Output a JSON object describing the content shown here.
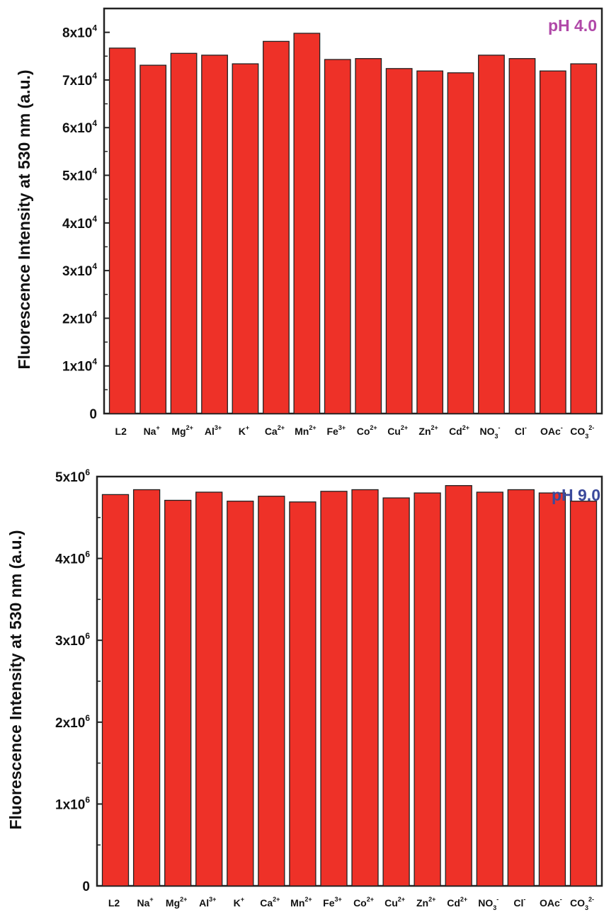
{
  "chart_data": [
    {
      "type": "bar",
      "title": "pH 4.0",
      "title_color": "#b048a8",
      "ylabel": "Fluorescence Intensity at 530 nm (a.u.)",
      "bar_color": "#ee3128",
      "ylim": [
        0,
        85000
      ],
      "yticks": [
        {
          "value": 0,
          "mant": "0",
          "exp": ""
        },
        {
          "value": 10000,
          "mant": "1x10",
          "exp": "4"
        },
        {
          "value": 20000,
          "mant": "2x10",
          "exp": "4"
        },
        {
          "value": 30000,
          "mant": "3x10",
          "exp": "4"
        },
        {
          "value": 40000,
          "mant": "4x10",
          "exp": "4"
        },
        {
          "value": 50000,
          "mant": "5x10",
          "exp": "4"
        },
        {
          "value": 60000,
          "mant": "6x10",
          "exp": "4"
        },
        {
          "value": 70000,
          "mant": "7x10",
          "exp": "4"
        },
        {
          "value": 80000,
          "mant": "8x10",
          "exp": "4"
        }
      ],
      "categories": [
        {
          "base": "L2",
          "sub": "",
          "sup": ""
        },
        {
          "base": "Na",
          "sub": "",
          "sup": "+"
        },
        {
          "base": "Mg",
          "sub": "",
          "sup": "2+"
        },
        {
          "base": "Al",
          "sub": "",
          "sup": "3+"
        },
        {
          "base": "K",
          "sub": "",
          "sup": "+"
        },
        {
          "base": "Ca",
          "sub": "",
          "sup": "2+"
        },
        {
          "base": "Mn",
          "sub": "",
          "sup": "2+"
        },
        {
          "base": "Fe",
          "sub": "",
          "sup": "3+"
        },
        {
          "base": "Co",
          "sub": "",
          "sup": "2+"
        },
        {
          "base": "Cu",
          "sub": "",
          "sup": "2+"
        },
        {
          "base": "Zn",
          "sub": "",
          "sup": "2+"
        },
        {
          "base": "Cd",
          "sub": "",
          "sup": "2+"
        },
        {
          "base": "NO",
          "sub": "3",
          "sup": "-"
        },
        {
          "base": "Cl",
          "sub": "",
          "sup": "-"
        },
        {
          "base": "OAc",
          "sub": "",
          "sup": "-"
        },
        {
          "base": "CO",
          "sub": "3",
          "sup": "2-"
        }
      ],
      "values": [
        76700,
        73100,
        75600,
        75200,
        73400,
        78100,
        79800,
        74300,
        74500,
        72400,
        71900,
        71500,
        75200,
        74500,
        71900,
        73400
      ]
    },
    {
      "type": "bar",
      "title": "pH 9.0",
      "title_color": "#3b4a9c",
      "ylabel": "Fluorescence Intensity at 530 nm (a.u.)",
      "bar_color": "#ee3128",
      "ylim": [
        0,
        5000000
      ],
      "yticks": [
        {
          "value": 0,
          "mant": "0",
          "exp": ""
        },
        {
          "value": 1000000,
          "mant": "1x10",
          "exp": "6"
        },
        {
          "value": 2000000,
          "mant": "2x10",
          "exp": "6"
        },
        {
          "value": 3000000,
          "mant": "3x10",
          "exp": "6"
        },
        {
          "value": 4000000,
          "mant": "4x10",
          "exp": "6"
        },
        {
          "value": 5000000,
          "mant": "5x10",
          "exp": "6"
        }
      ],
      "categories": [
        {
          "base": "L2",
          "sub": "",
          "sup": ""
        },
        {
          "base": "Na",
          "sub": "",
          "sup": "+"
        },
        {
          "base": "Mg",
          "sub": "",
          "sup": "2+"
        },
        {
          "base": "Al",
          "sub": "",
          "sup": "3+"
        },
        {
          "base": "K",
          "sub": "",
          "sup": "+"
        },
        {
          "base": "Ca",
          "sub": "",
          "sup": "2+"
        },
        {
          "base": "Mn",
          "sub": "",
          "sup": "2+"
        },
        {
          "base": "Fe",
          "sub": "",
          "sup": "3+"
        },
        {
          "base": "Co",
          "sub": "",
          "sup": "2+"
        },
        {
          "base": "Cu",
          "sub": "",
          "sup": "2+"
        },
        {
          "base": "Zn",
          "sub": "",
          "sup": "2+"
        },
        {
          "base": "Cd",
          "sub": "",
          "sup": "2+"
        },
        {
          "base": "NO",
          "sub": "3",
          "sup": "-"
        },
        {
          "base": "Cl",
          "sub": "",
          "sup": "-"
        },
        {
          "base": "OAc",
          "sub": "",
          "sup": "-"
        },
        {
          "base": "CO",
          "sub": "3",
          "sup": "2-"
        }
      ],
      "values": [
        4780000,
        4840000,
        4710000,
        4810000,
        4700000,
        4760000,
        4690000,
        4820000,
        4840000,
        4740000,
        4800000,
        4890000,
        4810000,
        4840000,
        4800000,
        4700000
      ]
    }
  ]
}
